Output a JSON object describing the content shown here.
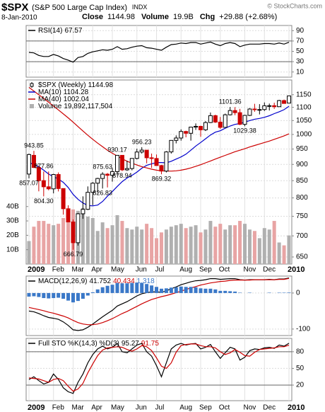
{
  "header": {
    "symbol": "$SPX",
    "name": "(S&P 500 Large Cap Index)",
    "exchange": "INDX",
    "source": "© StockCharts.com",
    "date": "8-Jan-2010",
    "close_label": "Close",
    "close": "1144.98",
    "volume_label": "Volume",
    "volume": "19.9B",
    "change_label": "Chg",
    "change": "+29.88 (+2.68%)"
  },
  "chart_data": [
    {
      "type": "line",
      "series": [
        {
          "name": "RSI(14)",
          "color": "#000000",
          "values": [
            48,
            47,
            42,
            40,
            40,
            44,
            41,
            36,
            33,
            29,
            38,
            40,
            46,
            49,
            51,
            53,
            52,
            54,
            59,
            54,
            55,
            58,
            60,
            61,
            57,
            56,
            54,
            52,
            58,
            63,
            64,
            66,
            65,
            67,
            67,
            64,
            66,
            68,
            64,
            61,
            65,
            67,
            65,
            59,
            62,
            64,
            64,
            64,
            65,
            65,
            64,
            66,
            64,
            67.57
          ]
        }
      ],
      "ylim": [
        0,
        100
      ],
      "yticks": [
        10,
        30,
        50,
        70,
        90
      ],
      "levels": [
        30,
        70
      ],
      "grid": true
    },
    {
      "type": "candlestick",
      "name": "$SPX (Weekly)",
      "color_up": "#000000",
      "color_down": "#cc0000",
      "log": true,
      "categories": [
        "2009",
        null,
        null,
        null,
        null,
        "Feb",
        null,
        null,
        null,
        "Mar",
        null,
        null,
        null,
        "Apr",
        null,
        null,
        null,
        "May",
        null,
        null,
        null,
        null,
        "Jun",
        null,
        null,
        null,
        "Jul",
        null,
        null,
        null,
        null,
        "Aug",
        null,
        null,
        null,
        "Sep",
        null,
        null,
        null,
        "Oct",
        null,
        null,
        null,
        null,
        "Nov",
        null,
        null,
        null,
        "Dec",
        null,
        null,
        null,
        null,
        "2010"
      ],
      "open": [
        870.0,
        929.2,
        890.4,
        850.1,
        831.9,
        825.9,
        868.6,
        826.8,
        770.1,
        735.1,
        683.4,
        756.6,
        768.5,
        815.9,
        842.5,
        856.6,
        869.6,
        866.2,
        877.5,
        929.2,
        882.9,
        887.0,
        919.1,
        940.1,
        946.2,
        921.2,
        918.9,
        896.4,
        879.1,
        940.4,
        979.3,
        987.5,
        1010.5,
        1004.1,
        1026.1,
        1028.9,
        1016.4,
        1042.7,
        1068.3,
        1044.4,
        1025.2,
        1071.5,
        1087.7,
        1079.6,
        1036.2,
        1069.3,
        1093.5,
        1091.4,
        1091.5,
        1106.0,
        1106.4,
        1102.5,
        1126.5,
        1116.6
      ],
      "high": [
        934.7,
        943.85,
        896.0,
        877.86,
        877.9,
        870.6,
        875.0,
        827.0,
        779.4,
        741.6,
        758.3,
        804.5,
        832.98,
        845.6,
        858.5,
        875.63,
        873.1,
        888.7,
        930.17,
        930.0,
        911.7,
        920.0,
        951.0,
        956.23,
        946.2,
        935.0,
        931.9,
        898.7,
        943.0,
        979.8,
        996.7,
        1018.0,
        1013.1,
        1027.6,
        1039.5,
        1031.0,
        1048.0,
        1080.2,
        1071.8,
        1063.4,
        1076.0,
        1101.36,
        1101.0,
        1094.0,
        1071.3,
        1097.0,
        1113.7,
        1112.4,
        1119.1,
        1114.7,
        1118.0,
        1129.4,
        1130.4,
        1145.4
      ],
      "low": [
        857.07,
        888.3,
        818.7,
        804.3,
        821.7,
        812.9,
        818.4,
        754.3,
        734.5,
        666.79,
        676.5,
        743.3,
        766.5,
        779.8,
        814.5,
        826.83,
        830.0,
        847.1,
        866.1,
        878.94,
        879.6,
        881.5,
        916.0,
        935.0,
        903.4,
        888.9,
        896.0,
        869.32,
        875.0,
        935.0,
        969.0,
        978.5,
        990.0,
        978.5,
        1016.0,
        991.9,
        1012.0,
        1041.0,
        1041.2,
        1019.9,
        1025.0,
        1069.0,
        1070.0,
        1033.4,
        1029.38,
        1067.0,
        1083.0,
        1073.0,
        1086.0,
        1088.0,
        1094.0,
        1102.5,
        1114.8,
        1116.6
      ],
      "close": [
        931.8,
        890.4,
        850.1,
        831.9,
        825.9,
        868.6,
        826.8,
        770.1,
        735.1,
        683.4,
        756.6,
        768.5,
        815.9,
        842.5,
        856.6,
        869.6,
        866.2,
        877.5,
        929.2,
        882.9,
        887.0,
        919.1,
        940.1,
        946.2,
        921.2,
        918.9,
        896.4,
        879.1,
        940.4,
        979.3,
        987.5,
        1010.5,
        1004.1,
        1026.1,
        1028.9,
        1016.4,
        1042.7,
        1068.3,
        1044.4,
        1025.2,
        1071.5,
        1087.7,
        1079.6,
        1036.2,
        1069.3,
        1093.5,
        1091.4,
        1091.5,
        1106.0,
        1106.4,
        1102.5,
        1126.5,
        1115.1,
        1144.98
      ],
      "series": [
        {
          "name": "MA(10)",
          "color": "#0000cc",
          "values": [
            905,
            900,
            893,
            882,
            870,
            862,
            855,
            845,
            830,
            810,
            796,
            786,
            779,
            778,
            780,
            790,
            805,
            818,
            833,
            847,
            858,
            866,
            876,
            888,
            897,
            902,
            906,
            906,
            905,
            910,
            917,
            924,
            933,
            946,
            960,
            972,
            985,
            998,
            1008,
            1013,
            1022,
            1030,
            1036,
            1039,
            1044,
            1050,
            1055,
            1058,
            1062,
            1068,
            1076,
            1083,
            1091,
            1104.28
          ]
        },
        {
          "name": "MA(40)",
          "color": "#cc0000",
          "values": [
            1180,
            1165,
            1150,
            1135,
            1120,
            1105,
            1090,
            1075,
            1060,
            1044,
            1028,
            1012,
            997,
            983,
            970,
            958,
            946,
            936,
            927,
            918,
            910,
            904,
            898,
            893,
            889,
            885,
            882,
            880,
            879,
            879,
            880,
            882,
            885,
            889,
            894,
            899,
            905,
            911,
            917,
            923,
            929,
            935,
            941,
            946,
            951,
            957,
            962,
            967,
            972,
            977,
            983,
            989,
            995,
            1002.04
          ]
        },
        {
          "name": "Volume",
          "type": "bar",
          "axis": "y2",
          "color": "#b0b0b0",
          "down_color": "#e8a4a4",
          "legend_value": "19,892,117,504",
          "values": [
            16,
            26,
            30,
            30,
            28,
            27,
            28,
            32,
            34,
            38,
            37,
            39,
            33,
            32,
            23,
            29,
            25,
            27,
            34,
            30,
            25,
            24,
            26,
            24,
            28,
            25,
            18,
            22,
            24,
            26,
            27,
            28,
            25,
            26,
            27,
            22,
            24,
            30,
            26,
            28,
            24,
            27,
            27,
            30,
            28,
            24,
            23,
            18,
            25,
            24,
            30,
            15,
            13,
            19.892117504
          ]
        }
      ],
      "ylim": [
        634,
        1211
      ],
      "yticks": [
        650,
        700,
        750,
        800,
        850,
        900,
        950,
        1000,
        1050,
        1100,
        1150
      ],
      "y2lim": [
        0,
        128
      ],
      "y2ticks": [
        {
          "value": 10,
          "label": "10B"
        },
        {
          "value": 20,
          "label": "20B"
        },
        {
          "value": 30,
          "label": "30B"
        },
        {
          "value": 40,
          "label": "40B"
        }
      ],
      "annotations": [
        {
          "field": "high",
          "index": 1,
          "label": "943.85"
        },
        {
          "field": "low",
          "index": 0,
          "label": "857.07"
        },
        {
          "field": "high",
          "index": 3,
          "label": "877.86"
        },
        {
          "field": "low",
          "index": 3,
          "label": "804.30"
        },
        {
          "field": "low",
          "index": 9,
          "label": "666.79"
        },
        {
          "field": "low",
          "index": 15,
          "label": "826.83"
        },
        {
          "field": "high",
          "index": 15,
          "label": "875.63"
        },
        {
          "field": "high",
          "index": 18,
          "label": "930.17"
        },
        {
          "field": "low",
          "index": 19,
          "label": "878.94"
        },
        {
          "field": "high",
          "index": 23,
          "label": "956.23"
        },
        {
          "field": "low",
          "index": 27,
          "label": "869.32"
        },
        {
          "field": "high",
          "index": 41,
          "label": "1101.36"
        },
        {
          "field": "low",
          "index": 44,
          "label": "1029.38"
        }
      ],
      "grid": true
    },
    {
      "type": "line",
      "title": "MACD(12,26,9)",
      "series": [
        {
          "color": "#000000",
          "values": [
            -50,
            -52,
            -57,
            -63,
            -68,
            -70,
            -73,
            -80,
            -90,
            -102,
            -104,
            -102,
            -95,
            -86,
            -76,
            -66,
            -57,
            -48,
            -36,
            -30,
            -24,
            -16,
            -8,
            -2,
            1,
            3,
            3,
            2,
            6,
            12,
            17,
            23,
            27,
            31,
            34,
            35,
            37,
            40,
            40,
            38,
            39,
            40,
            40,
            37,
            36,
            37,
            37,
            37,
            37,
            38,
            37,
            39,
            39,
            41.752
          ]
        },
        {
          "color": "#cc0000",
          "values": [
            -40,
            -43,
            -46,
            -49,
            -53,
            -56,
            -60,
            -64,
            -69,
            -76,
            -82,
            -86,
            -88,
            -88,
            -86,
            -82,
            -77,
            -71,
            -64,
            -57,
            -51,
            -44,
            -37,
            -30,
            -24,
            -18,
            -14,
            -10,
            -7,
            -3,
            1,
            5,
            10,
            14,
            18,
            22,
            25,
            28,
            30,
            32,
            33,
            35,
            36,
            36,
            36,
            36,
            37,
            37,
            37,
            37,
            37,
            38,
            38,
            40.434
          ]
        },
        {
          "type": "bar",
          "color": "#3a78c8",
          "values": [
            -10,
            -9,
            -11,
            -14,
            -15,
            -14,
            -13,
            -16,
            -21,
            -26,
            -22,
            -16,
            -7,
            2,
            10,
            16,
            20,
            23,
            28,
            27,
            27,
            28,
            29,
            28,
            25,
            21,
            17,
            12,
            13,
            15,
            16,
            18,
            17,
            17,
            16,
            13,
            12,
            12,
            10,
            6,
            6,
            5,
            4,
            1,
            0,
            1,
            0,
            0,
            0,
            1,
            0,
            1,
            1,
            1.318
          ]
        }
      ],
      "ylim": [
        -118,
        47
      ],
      "yticks": [
        -100,
        0
      ],
      "grid": true
    },
    {
      "type": "line",
      "title": "Full STO %K(14,3) %D(3)",
      "series": [
        {
          "color": "#000000",
          "values": [
            30,
            35,
            28,
            22,
            25,
            40,
            30,
            15,
            8,
            5,
            25,
            40,
            60,
            75,
            85,
            90,
            85,
            88,
            95,
            80,
            78,
            85,
            92,
            95,
            80,
            72,
            55,
            35,
            60,
            85,
            92,
            95,
            92,
            94,
            95,
            85,
            88,
            93,
            80,
            68,
            78,
            88,
            85,
            65,
            70,
            82,
            85,
            84,
            87,
            88,
            86,
            92,
            90,
            95.27
          ]
        },
        {
          "color": "#cc0000",
          "values": [
            33,
            32,
            31,
            28,
            25,
            30,
            32,
            28,
            18,
            9,
            13,
            23,
            42,
            58,
            73,
            83,
            87,
            88,
            89,
            88,
            84,
            81,
            85,
            91,
            89,
            82,
            69,
            54,
            50,
            60,
            79,
            91,
            93,
            94,
            94,
            91,
            89,
            89,
            87,
            80,
            75,
            78,
            84,
            79,
            73,
            72,
            79,
            84,
            85,
            86,
            87,
            89,
            89,
            91.75
          ]
        }
      ],
      "ylim": [
        -8,
        104
      ],
      "yticks": [
        20,
        50,
        80
      ],
      "levels": [
        20,
        80
      ],
      "grid": true
    }
  ]
}
